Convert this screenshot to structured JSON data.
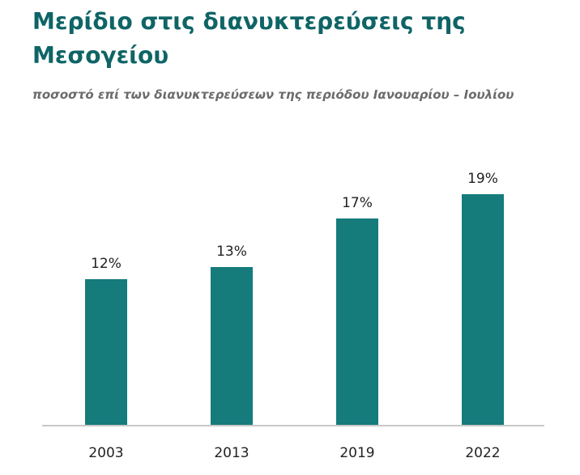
{
  "chart_data": {
    "type": "bar",
    "title": "Μερίδιο στις διανυκτερεύσεις της Μεσογείου",
    "subtitle": "ποσοστό επί των διανυκτερεύσεων της περιόδου Ιανουαρίου – Ιουλίου",
    "categories": [
      "2003",
      "2013",
      "2019",
      "2022"
    ],
    "values": [
      12,
      13,
      17,
      19
    ],
    "data_labels": [
      "12%",
      "13%",
      "17%",
      "19%"
    ],
    "ylim": [
      0,
      20
    ],
    "grid": false,
    "legend": "none",
    "bar_color": "#157b7b",
    "axis_color": "#c8c8c8"
  }
}
